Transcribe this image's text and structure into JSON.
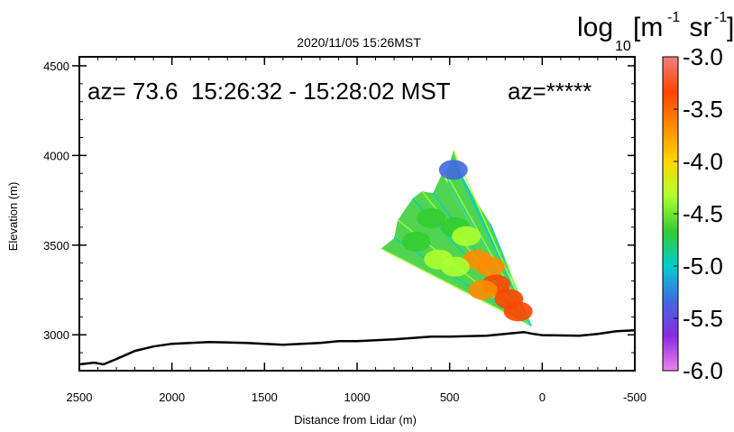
{
  "chart_data": {
    "type": "heatmap",
    "title": "2020/11/05 15:26MST",
    "annotation": "az= 73.6  15:26:32 - 15:28:02 MST",
    "annotation_right": "az=*****",
    "xlabel": "Distance from Lidar (m)",
    "ylabel": "Elevation (m)",
    "xlim": [
      2500,
      -500
    ],
    "ylim": [
      2800,
      4550
    ],
    "x_ticks": [
      2500,
      2000,
      1500,
      1000,
      500,
      0,
      -500
    ],
    "x_tick_labels": [
      "2500",
      "2000",
      "1500",
      "1000",
      "500",
      "0",
      "-500"
    ],
    "y_ticks": [
      3000,
      3500,
      4000,
      4500
    ],
    "y_tick_labels": [
      "3000",
      "3500",
      "4000",
      "4500"
    ],
    "grid": false,
    "colorbar": {
      "label_base": "log",
      "label_sub": "10",
      "label_units_open": "[m",
      "label_units_mid": " sr",
      "label_units_close": "]",
      "label_exp": "-1",
      "range": [
        -6.0,
        -3.0
      ],
      "ticks": [
        -3.0,
        -3.5,
        -4.0,
        -4.5,
        -5.0,
        -5.5,
        -6.0
      ],
      "tick_labels": [
        "-3.0",
        "-3.5",
        "-4.0",
        "-4.5",
        "-5.0",
        "-5.5",
        "-6.0"
      ],
      "colors": [
        "#ee82ee",
        "#8a2be2",
        "#4169e1",
        "#00ced1",
        "#32cd32",
        "#adff2f",
        "#ffd700",
        "#ff8c00",
        "#ff4500",
        "#f08080"
      ]
    },
    "terrain": {
      "name": "terrain profile",
      "x": [
        2500,
        2420,
        2370,
        2300,
        2200,
        2100,
        2000,
        1800,
        1600,
        1400,
        1200,
        1100,
        1000,
        800,
        600,
        500,
        300,
        250,
        200,
        150,
        100,
        50,
        0,
        -200,
        -250,
        -300,
        -400,
        -500
      ],
      "y": [
        2835,
        2845,
        2835,
        2865,
        2910,
        2935,
        2950,
        2960,
        2955,
        2945,
        2955,
        2965,
        2965,
        2975,
        2990,
        2990,
        2995,
        3000,
        3005,
        3010,
        3015,
        3005,
        2998,
        2995,
        3000,
        3005,
        3020,
        3025
      ]
    },
    "scan": {
      "name": "backscatter scan sector",
      "apex": [
        60,
        3050
      ],
      "edge_outer": [
        [
          870,
          3480
        ],
        [
          800,
          3540
        ],
        [
          780,
          3640
        ],
        [
          700,
          3760
        ],
        [
          650,
          3800
        ],
        [
          590,
          3790
        ],
        [
          540,
          3900
        ],
        [
          510,
          3850
        ],
        [
          520,
          3900
        ],
        [
          490,
          3990
        ],
        [
          480,
          4030
        ],
        [
          440,
          3900
        ],
        [
          360,
          3750
        ],
        [
          280,
          3620
        ],
        [
          200,
          3420
        ],
        [
          150,
          3250
        ]
      ],
      "cells": [
        {
          "x": 470,
          "y": 3600,
          "v": -4.6
        },
        {
          "x": 600,
          "y": 3650,
          "v": -4.7
        },
        {
          "x": 680,
          "y": 3520,
          "v": -4.8
        },
        {
          "x": 410,
          "y": 3550,
          "v": -4.3
        },
        {
          "x": 350,
          "y": 3420,
          "v": -3.8
        },
        {
          "x": 280,
          "y": 3380,
          "v": -3.6
        },
        {
          "x": 250,
          "y": 3280,
          "v": -3.3
        },
        {
          "x": 180,
          "y": 3200,
          "v": -3.4
        },
        {
          "x": 130,
          "y": 3130,
          "v": -3.2
        },
        {
          "x": 470,
          "y": 3380,
          "v": -4.2
        },
        {
          "x": 560,
          "y": 3420,
          "v": -4.5
        },
        {
          "x": 320,
          "y": 3250,
          "v": -3.6
        },
        {
          "x": 480,
          "y": 3920,
          "v": -5.2
        }
      ]
    }
  }
}
